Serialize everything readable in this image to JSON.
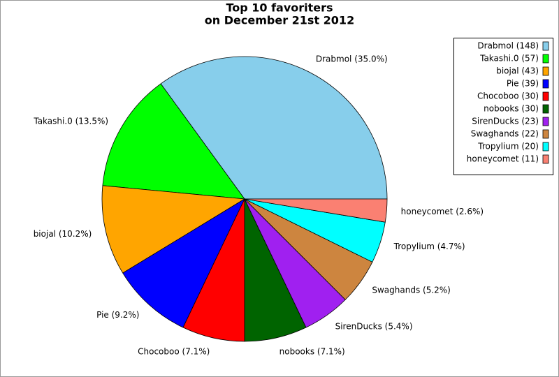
{
  "chart_data": {
    "type": "pie",
    "title": "Top 10 favoriters",
    "subtitle": "on December 21st 2012",
    "categories": [
      "Drabmol",
      "Takashi.0",
      "biojal",
      "Pie",
      "Chocoboo",
      "nobooks",
      "SirenDucks",
      "Swaghands",
      "Tropylium",
      "honeycomet"
    ],
    "values": [
      148,
      57,
      43,
      39,
      30,
      30,
      23,
      22,
      20,
      11
    ],
    "value_labels": [
      "Drabmol (148)",
      "Takashi.0 (57)",
      "biojal (43)",
      "Pie (39)",
      "Chocoboo (30)",
      "nobooks (30)",
      "SirenDucks (23)",
      "Swaghands (22)",
      "Tropylium (20)",
      "honeycomet (11)"
    ],
    "percents": [
      35.0,
      13.5,
      10.2,
      9.2,
      7.1,
      7.1,
      5.4,
      5.2,
      4.7,
      2.6
    ],
    "percent_labels": [
      "Drabmol (35.0%)",
      "Takashi.0 (13.5%)",
      "biojal (10.2%)",
      "Pie (9.2%)",
      "Chocoboo (7.1%)",
      "nobooks (7.1%)",
      "SirenDucks (5.4%)",
      "Swaghands (5.2%)",
      "Tropylium (4.7%)",
      "honeycomet (2.6%)"
    ],
    "colors": [
      "#87ceeb",
      "#00ff00",
      "#ffa500",
      "#0000ff",
      "#ff0000",
      "#006400",
      "#a020f0",
      "#cd853f",
      "#00ffff",
      "#fa8072"
    ],
    "legend": "upper right"
  }
}
